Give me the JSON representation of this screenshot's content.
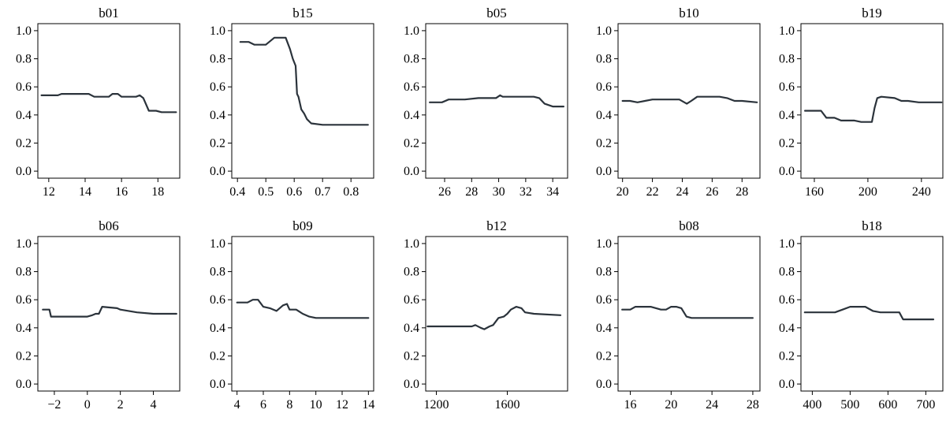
{
  "chart_data": [
    {
      "type": "line",
      "title": "b01",
      "xlim": [
        11.4,
        19.2
      ],
      "ylim": [
        -0.05,
        1.05
      ],
      "xticks": [
        12,
        14,
        16,
        18
      ],
      "xtick_labels": [
        "12",
        "14",
        "16",
        "18"
      ],
      "yticks": [
        0,
        0.2,
        0.4,
        0.6,
        0.8,
        1.0
      ],
      "ytick_labels": [
        "0.0",
        "0.2",
        "0.4",
        "0.6",
        "0.8",
        "1.0"
      ],
      "x": [
        11.6,
        12.5,
        12.7,
        14.2,
        14.5,
        15.3,
        15.5,
        15.8,
        16.0,
        16.8,
        17.0,
        17.2,
        17.5,
        17.9,
        18.2,
        19.0
      ],
      "y": [
        0.54,
        0.54,
        0.55,
        0.55,
        0.53,
        0.53,
        0.55,
        0.55,
        0.53,
        0.53,
        0.54,
        0.52,
        0.43,
        0.43,
        0.42,
        0.42
      ]
    },
    {
      "type": "line",
      "title": "b15",
      "xlim": [
        0.38,
        0.88
      ],
      "ylim": [
        -0.05,
        1.05
      ],
      "xticks": [
        0.4,
        0.5,
        0.6,
        0.7,
        0.8
      ],
      "xtick_labels": [
        "0.4",
        "0.5",
        "0.6",
        "0.7",
        "0.8"
      ],
      "yticks": [
        0,
        0.2,
        0.4,
        0.6,
        0.8,
        1.0
      ],
      "ytick_labels": [
        "0.0",
        "0.2",
        "0.4",
        "0.6",
        "0.8",
        "1.0"
      ],
      "x": [
        0.41,
        0.44,
        0.46,
        0.5,
        0.53,
        0.57,
        0.585,
        0.595,
        0.605,
        0.61,
        0.615,
        0.625,
        0.635,
        0.645,
        0.66,
        0.7,
        0.86
      ],
      "y": [
        0.92,
        0.92,
        0.9,
        0.9,
        0.95,
        0.95,
        0.87,
        0.8,
        0.75,
        0.55,
        0.53,
        0.44,
        0.41,
        0.37,
        0.34,
        0.33,
        0.33
      ]
    },
    {
      "type": "line",
      "title": "b05",
      "xlim": [
        24.6,
        35.1
      ],
      "ylim": [
        -0.05,
        1.05
      ],
      "xticks": [
        26,
        28,
        30,
        32,
        34
      ],
      "xtick_labels": [
        "26",
        "28",
        "30",
        "32",
        "34"
      ],
      "yticks": [
        0,
        0.2,
        0.4,
        0.6,
        0.8,
        1.0
      ],
      "ytick_labels": [
        "0.0",
        "0.2",
        "0.4",
        "0.6",
        "0.8",
        "1.0"
      ],
      "x": [
        24.9,
        25.8,
        26.3,
        27.5,
        28.5,
        29.8,
        30.1,
        30.3,
        30.6,
        32.6,
        33.0,
        33.4,
        34.0,
        34.8
      ],
      "y": [
        0.49,
        0.49,
        0.51,
        0.51,
        0.52,
        0.52,
        0.54,
        0.53,
        0.53,
        0.53,
        0.52,
        0.48,
        0.46,
        0.46
      ]
    },
    {
      "type": "line",
      "title": "b10",
      "xlim": [
        19.7,
        29.2
      ],
      "ylim": [
        -0.05,
        1.05
      ],
      "xticks": [
        20,
        22,
        24,
        26,
        28
      ],
      "xtick_labels": [
        "20",
        "22",
        "24",
        "26",
        "28"
      ],
      "yticks": [
        0,
        0.2,
        0.4,
        0.6,
        0.8,
        1.0
      ],
      "ytick_labels": [
        "0.0",
        "0.2",
        "0.4",
        "0.6",
        "0.8",
        "1.0"
      ],
      "x": [
        20.0,
        20.5,
        21.0,
        21.5,
        22.0,
        23.8,
        24.3,
        24.6,
        25.0,
        26.5,
        27.0,
        27.5,
        28.0,
        29.0
      ],
      "y": [
        0.5,
        0.5,
        0.49,
        0.5,
        0.51,
        0.51,
        0.48,
        0.5,
        0.53,
        0.53,
        0.52,
        0.5,
        0.5,
        0.49
      ]
    },
    {
      "type": "line",
      "title": "b19",
      "xlim": [
        150,
        256
      ],
      "ylim": [
        -0.05,
        1.05
      ],
      "xticks": [
        160,
        200,
        240
      ],
      "xtick_labels": [
        "160",
        "200",
        "240"
      ],
      "yticks": [
        0,
        0.2,
        0.4,
        0.6,
        0.8,
        1.0
      ],
      "ytick_labels": [
        "0.0",
        "0.2",
        "0.4",
        "0.6",
        "0.8",
        "1.0"
      ],
      "x": [
        153,
        165,
        169,
        175,
        180,
        190,
        195,
        203,
        205,
        207,
        210,
        220,
        225,
        230,
        238,
        255
      ],
      "y": [
        0.43,
        0.43,
        0.38,
        0.38,
        0.36,
        0.36,
        0.35,
        0.35,
        0.45,
        0.52,
        0.53,
        0.52,
        0.5,
        0.5,
        0.49,
        0.49
      ]
    },
    {
      "type": "line",
      "title": "b06",
      "xlim": [
        -3.0,
        5.6
      ],
      "ylim": [
        -0.05,
        1.05
      ],
      "xticks": [
        -2,
        0,
        2,
        4
      ],
      "xtick_labels": [
        "−2",
        "0",
        "2",
        "4"
      ],
      "yticks": [
        0,
        0.2,
        0.4,
        0.6,
        0.8,
        1.0
      ],
      "ytick_labels": [
        "0.0",
        "0.2",
        "0.4",
        "0.6",
        "0.8",
        "1.0"
      ],
      "x": [
        -2.7,
        -2.3,
        -2.2,
        -2.0,
        0.0,
        0.3,
        0.5,
        0.7,
        0.9,
        1.8,
        2.0,
        3.0,
        4.0,
        5.4
      ],
      "y": [
        0.53,
        0.53,
        0.48,
        0.48,
        0.48,
        0.49,
        0.5,
        0.5,
        0.55,
        0.54,
        0.53,
        0.51,
        0.5,
        0.5
      ]
    },
    {
      "type": "line",
      "title": "b09",
      "xlim": [
        3.6,
        14.4
      ],
      "ylim": [
        -0.05,
        1.05
      ],
      "xticks": [
        4,
        6,
        8,
        10,
        12,
        14
      ],
      "xtick_labels": [
        "4",
        "6",
        "8",
        "10",
        "12",
        "14"
      ],
      "yticks": [
        0,
        0.2,
        0.4,
        0.6,
        0.8,
        1.0
      ],
      "ytick_labels": [
        "0.0",
        "0.2",
        "0.4",
        "0.6",
        "0.8",
        "1.0"
      ],
      "x": [
        4.0,
        4.8,
        5.2,
        5.6,
        6.0,
        6.5,
        7.0,
        7.5,
        7.8,
        8.0,
        8.5,
        9.0,
        9.5,
        10.0,
        14.0
      ],
      "y": [
        0.58,
        0.58,
        0.6,
        0.6,
        0.55,
        0.54,
        0.52,
        0.56,
        0.57,
        0.53,
        0.53,
        0.5,
        0.48,
        0.47,
        0.47
      ]
    },
    {
      "type": "line",
      "title": "b12",
      "xlim": [
        1140,
        1940
      ],
      "ylim": [
        -0.05,
        1.05
      ],
      "xticks": [
        1200,
        1600
      ],
      "xtick_labels": [
        "1200",
        "1600"
      ],
      "yticks": [
        0,
        0.2,
        0.4,
        0.6,
        0.8,
        1.0
      ],
      "ytick_labels": [
        "0.0",
        "0.2",
        "0.4",
        "0.6",
        "0.8",
        "1.0"
      ],
      "x": [
        1150,
        1400,
        1420,
        1450,
        1470,
        1500,
        1520,
        1550,
        1580,
        1600,
        1620,
        1650,
        1680,
        1700,
        1750,
        1900
      ],
      "y": [
        0.41,
        0.41,
        0.42,
        0.4,
        0.39,
        0.41,
        0.42,
        0.47,
        0.48,
        0.5,
        0.53,
        0.55,
        0.54,
        0.51,
        0.5,
        0.49
      ]
    },
    {
      "type": "line",
      "title": "b08",
      "xlim": [
        14.8,
        28.7
      ],
      "ylim": [
        -0.05,
        1.05
      ],
      "xticks": [
        16,
        20,
        24,
        28
      ],
      "xtick_labels": [
        "16",
        "20",
        "24",
        "28"
      ],
      "yticks": [
        0,
        0.2,
        0.4,
        0.6,
        0.8,
        1.0
      ],
      "ytick_labels": [
        "0.0",
        "0.2",
        "0.4",
        "0.6",
        "0.8",
        "1.0"
      ],
      "x": [
        15.2,
        16.0,
        16.5,
        18.0,
        19.0,
        19.5,
        20.0,
        20.5,
        21.0,
        21.5,
        22.0,
        28.0
      ],
      "y": [
        0.53,
        0.53,
        0.55,
        0.55,
        0.53,
        0.53,
        0.55,
        0.55,
        0.54,
        0.48,
        0.47,
        0.47
      ]
    },
    {
      "type": "line",
      "title": "b18",
      "xlim": [
        370,
        745
      ],
      "ylim": [
        -0.05,
        1.05
      ],
      "xticks": [
        400,
        500,
        600,
        700
      ],
      "xtick_labels": [
        "400",
        "500",
        "600",
        "700"
      ],
      "yticks": [
        0,
        0.2,
        0.4,
        0.6,
        0.8,
        1.0
      ],
      "ytick_labels": [
        "0.0",
        "0.2",
        "0.4",
        "0.6",
        "0.8",
        "1.0"
      ],
      "x": [
        380,
        460,
        480,
        500,
        540,
        560,
        580,
        630,
        640,
        720
      ],
      "y": [
        0.51,
        0.51,
        0.53,
        0.55,
        0.55,
        0.52,
        0.51,
        0.51,
        0.46,
        0.46
      ]
    }
  ],
  "style": {
    "line_color": "#2b333b",
    "axis_color": "#000000",
    "background": "#ffffff"
  }
}
